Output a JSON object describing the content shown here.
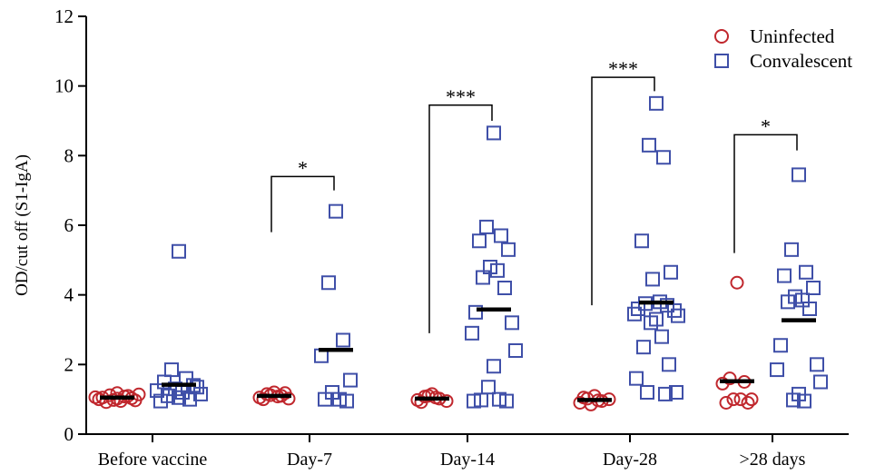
{
  "chart_data": {
    "type": "scatter",
    "title": "",
    "ylabel": "OD/cut off (S1-IgA)",
    "xlabel": "",
    "ylim": [
      0,
      12
    ],
    "yticks": [
      0,
      2,
      4,
      6,
      8,
      10,
      12
    ],
    "categories": [
      "Before vaccine",
      "Day-7",
      "Day-14",
      "Day-28",
      ">28 days"
    ],
    "legend": {
      "placement": "top-right",
      "entries": [
        {
          "label": "Uninfected",
          "marker": "circle",
          "color": "#c0272d"
        },
        {
          "label": "Convalescent",
          "marker": "square",
          "color": "#3f4fa8"
        }
      ]
    },
    "series": [
      {
        "name": "Uninfected",
        "marker": "circle",
        "color": "#c0272d",
        "values": [
          [
            1.18,
            1.12,
            1.08,
            1.05,
            1.03,
            0.98,
            0.95,
            0.92,
            1.1,
            1.0,
            0.97,
            1.06,
            1.14,
            1.02
          ],
          [
            1.2,
            1.15,
            1.1,
            1.05,
            1.02,
            1.12,
            1.08,
            1.0,
            1.18
          ],
          [
            1.15,
            1.08,
            1.02,
            0.98,
            0.95,
            1.1,
            1.05,
            0.92
          ],
          [
            1.1,
            1.02,
            0.95,
            0.9,
            1.0,
            0.85,
            0.97,
            1.05
          ],
          [
            4.35,
            1.6,
            1.5,
            1.45,
            1.0,
            1.0,
            1.0,
            0.9,
            0.9
          ]
        ],
        "means": [
          1.05,
          1.1,
          1.02,
          0.98,
          1.52
        ]
      },
      {
        "name": "Convalescent",
        "marker": "square",
        "color": "#3f4fa8",
        "values": [
          [
            5.25,
            1.85,
            1.6,
            1.5,
            1.4,
            1.3,
            1.2,
            1.1,
            1.0,
            0.95,
            1.35,
            1.25,
            1.15,
            1.05
          ],
          [
            6.4,
            4.35,
            2.7,
            2.25,
            1.55,
            1.2,
            1.0,
            1.0,
            0.95
          ],
          [
            8.65,
            5.95,
            5.7,
            5.55,
            5.3,
            4.8,
            4.7,
            4.5,
            4.2,
            3.5,
            3.2,
            2.9,
            2.4,
            1.95,
            1.35,
            1.0,
            0.98,
            0.95,
            0.95
          ],
          [
            9.5,
            8.3,
            7.95,
            5.55,
            4.65,
            4.45,
            3.8,
            3.75,
            3.7,
            3.6,
            3.55,
            3.45,
            3.4,
            3.3,
            3.2,
            2.8,
            2.5,
            2.0,
            1.6,
            1.2,
            1.2,
            1.15
          ],
          [
            7.45,
            5.3,
            4.65,
            4.55,
            4.2,
            3.95,
            3.85,
            3.8,
            3.6,
            2.55,
            2.0,
            1.85,
            1.5,
            1.15,
            0.98,
            0.95
          ]
        ],
        "means": [
          1.42,
          2.42,
          3.58,
          3.78,
          3.27
        ]
      }
    ],
    "significance": [
      {
        "group": 1,
        "label": "*",
        "top": 7.4,
        "left_drop": 5.8,
        "right_drop": 7.0
      },
      {
        "group": 2,
        "label": "***",
        "top": 9.45,
        "left_drop": 2.9,
        "right_drop": 9.0
      },
      {
        "group": 3,
        "label": "***",
        "top": 10.25,
        "left_drop": 3.7,
        "right_drop": 9.85
      },
      {
        "group": 4,
        "label": "*",
        "top": 8.6,
        "left_drop": 5.2,
        "right_drop": 8.15
      }
    ]
  }
}
